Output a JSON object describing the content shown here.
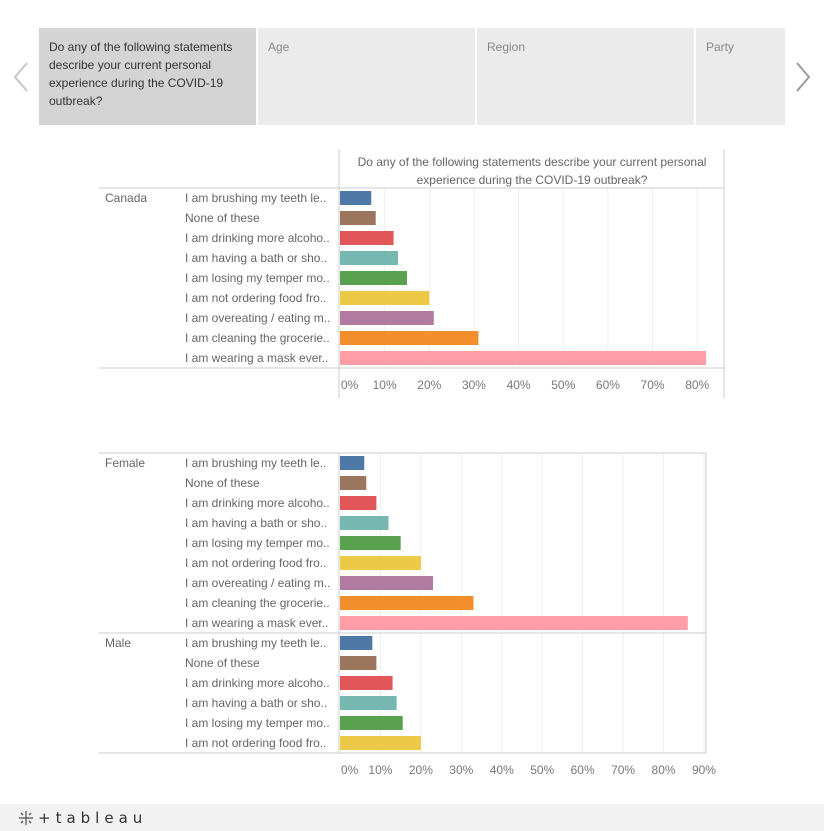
{
  "tabs": [
    {
      "label": "Do any of the following statements describe your current personal experience during the COVID-19 outbreak?",
      "active": true
    },
    {
      "label": "Age",
      "active": false
    },
    {
      "label": "Region",
      "active": false
    },
    {
      "label": "Party",
      "active": false
    }
  ],
  "colors": [
    "#4e79a7",
    "#9c755f",
    "#e15759",
    "#76b7b2",
    "#59a14f",
    "#edc948",
    "#b07aa1",
    "#f28e2b",
    "#ff9da7"
  ],
  "chart_data": [
    {
      "type": "bar",
      "orientation": "horizontal",
      "title": "Do any of the following statements describe your current personal experience during the COVID-19 outbreak?",
      "title_lines": [
        "Do any of the following statements describe your current personal",
        "experience during the COVID-19 outbreak?"
      ],
      "xlim": [
        0,
        0.86
      ],
      "ticks": [
        0,
        0.1,
        0.2,
        0.3,
        0.4,
        0.5,
        0.6,
        0.7,
        0.8
      ],
      "tick_labels": [
        "0%",
        "10%",
        "20%",
        "30%",
        "40%",
        "50%",
        "60%",
        "70%",
        "80%"
      ],
      "grid": true,
      "groups": [
        {
          "name": "Canada",
          "categories": [
            "I am brushing my teeth le..",
            "None of these",
            "I am drinking more alcoho..",
            "I am having a bath or sho..",
            "I am losing my temper mo..",
            "I am not ordering food fro..",
            "I am overeating / eating m..",
            "I am cleaning the grocerie..",
            "I am wearing a mask ever.."
          ],
          "values": [
            0.07,
            0.08,
            0.12,
            0.13,
            0.15,
            0.2,
            0.21,
            0.31,
            0.82
          ]
        }
      ]
    },
    {
      "type": "bar",
      "orientation": "horizontal",
      "xlim": [
        0,
        0.905
      ],
      "ticks": [
        0,
        0.1,
        0.2,
        0.3,
        0.4,
        0.5,
        0.6,
        0.7,
        0.8,
        0.9
      ],
      "tick_labels": [
        "0%",
        "10%",
        "20%",
        "30%",
        "40%",
        "50%",
        "60%",
        "70%",
        "80%",
        "90%"
      ],
      "grid": true,
      "groups": [
        {
          "name": "Female",
          "categories": [
            "I am brushing my teeth le..",
            "None of these",
            "I am drinking more alcoho..",
            "I am having a bath or sho..",
            "I am losing my temper mo..",
            "I am not ordering food fro..",
            "I am overeating / eating m..",
            "I am cleaning the grocerie..",
            "I am wearing a mask ever.."
          ],
          "values": [
            0.06,
            0.065,
            0.09,
            0.12,
            0.15,
            0.2,
            0.23,
            0.33,
            0.86
          ]
        },
        {
          "name": "Male",
          "categories": [
            "I am brushing my teeth le..",
            "None of these",
            "I am drinking more alcoho..",
            "I am having a bath or sho..",
            "I am losing my temper mo..",
            "I am not ordering food fro.."
          ],
          "values": [
            0.08,
            0.09,
            0.13,
            0.14,
            0.155,
            0.2
          ]
        }
      ]
    }
  ],
  "footer": {
    "logo_text": "tableau"
  }
}
